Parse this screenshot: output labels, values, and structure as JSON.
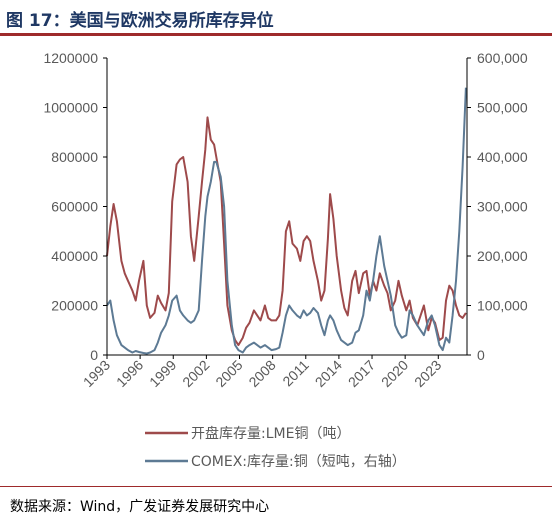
{
  "figure": {
    "title": "图 17：美国与欧洲交易所库存异位",
    "source": "数据来源：Wind，广发证券发展研究中心"
  },
  "chart_data": {
    "type": "line",
    "title": "",
    "xlabel": "",
    "ylabel_left": "",
    "ylabel_right": "",
    "x_ticks": [
      "1993",
      "1996",
      "1999",
      "2002",
      "2005",
      "2008",
      "2011",
      "2014",
      "2017",
      "2020",
      "2023"
    ],
    "xlim": [
      1993,
      2025.6
    ],
    "ylim_left": [
      0,
      1200000
    ],
    "ylim_right": [
      0,
      600000
    ],
    "y_ticks_left": [
      "0",
      "200000",
      "400000",
      "600000",
      "800000",
      "1000000",
      "1200000"
    ],
    "y_ticks_right": [
      "0",
      "100,000",
      "200,000",
      "300,000",
      "400,000",
      "500,000",
      "600,000"
    ],
    "legend_position": "bottom",
    "grid": false,
    "series": [
      {
        "name": "开盘库存量:LME铜（吨）",
        "axis": "left",
        "color": "#9e4a4b",
        "x": [
          1993,
          1993.3,
          1993.6,
          1993.9,
          1994.3,
          1994.6,
          1994.9,
          1995.3,
          1995.6,
          1995.9,
          1996.3,
          1996.6,
          1996.9,
          1997.3,
          1997.6,
          1997.9,
          1998.3,
          1998.6,
          1998.9,
          1999.3,
          1999.6,
          1999.9,
          2000.3,
          2000.6,
          2000.9,
          2001.3,
          2001.6,
          2001.9,
          2002.1,
          2002.4,
          2002.7,
          2002.9,
          2003.3,
          2003.6,
          2003.9,
          2004.3,
          2004.6,
          2004.9,
          2005.3,
          2005.6,
          2005.9,
          2006.3,
          2006.6,
          2006.9,
          2007.3,
          2007.6,
          2007.9,
          2008.3,
          2008.6,
          2008.9,
          2009.2,
          2009.5,
          2009.8,
          2010.2,
          2010.5,
          2010.8,
          2011.1,
          2011.4,
          2011.7,
          2012.1,
          2012.4,
          2012.7,
          2013.0,
          2013.2,
          2013.5,
          2013.8,
          2014.2,
          2014.5,
          2014.8,
          2015.2,
          2015.5,
          2015.8,
          2016.2,
          2016.5,
          2016.8,
          2017.1,
          2017.4,
          2017.7,
          2018.1,
          2018.4,
          2018.7,
          2019.1,
          2019.4,
          2019.7,
          2020.1,
          2020.4,
          2020.7,
          2021.1,
          2021.4,
          2021.7,
          2022.1,
          2022.4,
          2022.7,
          2023.1,
          2023.4,
          2023.7,
          2024.0,
          2024.3,
          2024.6,
          2024.9,
          2025.2,
          2025.5
        ],
        "values": [
          400000,
          520000,
          610000,
          540000,
          380000,
          330000,
          300000,
          260000,
          220000,
          300000,
          380000,
          200000,
          150000,
          170000,
          240000,
          210000,
          180000,
          250000,
          620000,
          770000,
          790000,
          800000,
          700000,
          480000,
          380000,
          560000,
          700000,
          830000,
          960000,
          870000,
          850000,
          800000,
          700000,
          450000,
          200000,
          100000,
          60000,
          40000,
          70000,
          110000,
          130000,
          180000,
          160000,
          140000,
          200000,
          150000,
          140000,
          140000,
          160000,
          260000,
          500000,
          540000,
          450000,
          430000,
          380000,
          460000,
          480000,
          460000,
          380000,
          300000,
          220000,
          260000,
          470000,
          650000,
          550000,
          400000,
          260000,
          190000,
          160000,
          300000,
          340000,
          250000,
          330000,
          340000,
          240000,
          300000,
          260000,
          330000,
          280000,
          250000,
          180000,
          220000,
          300000,
          240000,
          180000,
          220000,
          150000,
          120000,
          160000,
          200000,
          100000,
          150000,
          130000,
          60000,
          70000,
          220000,
          280000,
          260000,
          200000,
          160000,
          150000,
          170000
        ]
      },
      {
        "name": "COMEX:库存量:铜（短吨，右轴）",
        "axis": "right",
        "color": "#5d7a94",
        "x": [
          1993,
          1993.3,
          1993.6,
          1993.9,
          1994.3,
          1994.6,
          1994.9,
          1995.3,
          1995.6,
          1995.9,
          1996.3,
          1996.6,
          1996.9,
          1997.3,
          1997.6,
          1997.9,
          1998.3,
          1998.6,
          1998.9,
          1999.3,
          1999.6,
          1999.9,
          2000.3,
          2000.6,
          2000.9,
          2001.3,
          2001.6,
          2001.9,
          2002.1,
          2002.4,
          2002.7,
          2002.9,
          2003.3,
          2003.6,
          2003.9,
          2004.3,
          2004.6,
          2004.9,
          2005.3,
          2005.6,
          2005.9,
          2006.3,
          2006.6,
          2006.9,
          2007.3,
          2007.6,
          2007.9,
          2008.3,
          2008.6,
          2008.9,
          2009.2,
          2009.5,
          2009.8,
          2010.2,
          2010.5,
          2010.8,
          2011.1,
          2011.4,
          2011.7,
          2012.1,
          2012.4,
          2012.7,
          2013.0,
          2013.2,
          2013.5,
          2013.8,
          2014.2,
          2014.5,
          2014.8,
          2015.2,
          2015.5,
          2015.8,
          2016.2,
          2016.5,
          2016.8,
          2017.1,
          2017.4,
          2017.7,
          2018.1,
          2018.4,
          2018.7,
          2019.1,
          2019.4,
          2019.7,
          2020.1,
          2020.4,
          2020.7,
          2021.1,
          2021.4,
          2021.7,
          2022.1,
          2022.4,
          2022.7,
          2023.1,
          2023.4,
          2023.7,
          2024.0,
          2024.3,
          2024.6,
          2024.9,
          2025.2,
          2025.5
        ],
        "values": [
          100000,
          110000,
          70000,
          40000,
          20000,
          15000,
          10000,
          5000,
          8000,
          6000,
          4000,
          3000,
          5000,
          10000,
          25000,
          45000,
          60000,
          80000,
          110000,
          120000,
          90000,
          80000,
          70000,
          65000,
          70000,
          90000,
          190000,
          280000,
          320000,
          350000,
          390000,
          390000,
          360000,
          300000,
          150000,
          60000,
          20000,
          10000,
          5000,
          15000,
          20000,
          25000,
          20000,
          15000,
          20000,
          15000,
          10000,
          12000,
          15000,
          45000,
          80000,
          100000,
          90000,
          80000,
          75000,
          90000,
          80000,
          85000,
          95000,
          85000,
          60000,
          40000,
          70000,
          80000,
          70000,
          50000,
          30000,
          25000,
          20000,
          25000,
          45000,
          50000,
          80000,
          130000,
          110000,
          150000,
          200000,
          240000,
          180000,
          150000,
          120000,
          60000,
          45000,
          35000,
          40000,
          90000,
          80000,
          60000,
          50000,
          40000,
          70000,
          80000,
          60000,
          20000,
          10000,
          35000,
          25000,
          80000,
          150000,
          250000,
          380000,
          540000
        ]
      }
    ]
  }
}
